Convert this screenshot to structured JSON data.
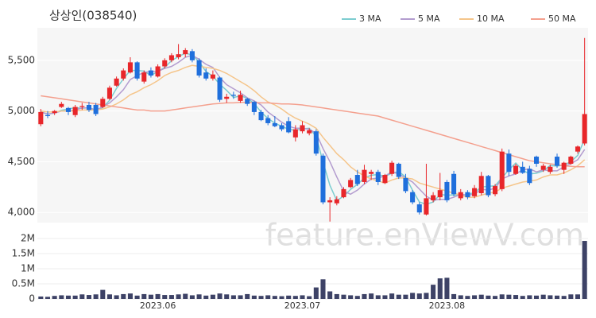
{
  "chart_data": [
    {
      "type": "candlestick",
      "title": "상상인(038540)",
      "open": [
        4870,
        4960,
        4980,
        5040,
        5030,
        4960,
        5040,
        5060,
        5060,
        5040,
        5120,
        5250,
        5320,
        5380,
        5480,
        5290,
        5400,
        5340,
        5440,
        5500,
        5530,
        5560,
        5590,
        5500,
        5380,
        5320,
        5330,
        5120,
        5160,
        5100,
        5120,
        5090,
        4990,
        4930,
        4880,
        4860,
        4900,
        4740,
        4800,
        4780,
        4800,
        4560,
        4100,
        4090,
        4150,
        4250,
        4370,
        4300,
        4380,
        4400,
        4290,
        4380,
        4480,
        4340,
        4200,
        4080,
        3980,
        4120,
        4150,
        4300,
        4380,
        4140,
        4200,
        4160,
        4190,
        4360,
        4180,
        4230,
        4580,
        4380,
        4450,
        4430,
        4550,
        4420,
        4400,
        4550,
        4420,
        4480,
        4600,
        4680
      ],
      "high": [
        5020,
        5000,
        5010,
        5090,
        5040,
        5060,
        5080,
        5090,
        5080,
        5140,
        5250,
        5340,
        5420,
        5530,
        5490,
        5400,
        5430,
        5460,
        5520,
        5570,
        5660,
        5620,
        5610,
        5520,
        5420,
        5400,
        5340,
        5170,
        5190,
        5200,
        5130,
        5100,
        5010,
        4960,
        4950,
        4880,
        4940,
        4860,
        4900,
        4830,
        4820,
        4580,
        4150,
        4160,
        4250,
        4340,
        4420,
        4470,
        4420,
        4420,
        4380,
        4510,
        4490,
        4380,
        4220,
        4100,
        4480,
        4200,
        4390,
        4320,
        4410,
        4230,
        4220,
        4270,
        4400,
        4370,
        4280,
        4630,
        4620,
        4480,
        4500,
        4460,
        4560,
        4480,
        4470,
        4580,
        4500,
        4560,
        4660,
        5720
      ],
      "low": [
        4850,
        4930,
        4960,
        5030,
        4960,
        4940,
        5010,
        4990,
        4950,
        5030,
        5110,
        5240,
        5300,
        5370,
        5300,
        5270,
        5330,
        5330,
        5420,
        5480,
        5510,
        5530,
        5480,
        5330,
        5300,
        5300,
        5090,
        5080,
        5120,
        5080,
        5050,
        4960,
        4900,
        4860,
        4840,
        4800,
        4780,
        4700,
        4780,
        4760,
        4560,
        4080,
        3910,
        4070,
        4140,
        4240,
        4260,
        4280,
        4320,
        4270,
        4280,
        4360,
        4330,
        4190,
        4080,
        3980,
        3970,
        4100,
        4120,
        4100,
        4160,
        4120,
        4130,
        4140,
        4170,
        4150,
        4160,
        4210,
        4360,
        4370,
        4380,
        4270,
        4450,
        4400,
        4380,
        4440,
        4380,
        4470,
        4580,
        4660
      ],
      "close": [
        4990,
        4950,
        5000,
        5070,
        4990,
        5040,
        5050,
        5010,
        4970,
        5120,
        5230,
        5320,
        5400,
        5480,
        5320,
        5380,
        5350,
        5440,
        5500,
        5550,
        5560,
        5600,
        5500,
        5350,
        5320,
        5360,
        5110,
        5140,
        5150,
        5160,
        5070,
        4990,
        4910,
        4880,
        4850,
        4820,
        4790,
        4820,
        4860,
        4810,
        4580,
        4100,
        4120,
        4130,
        4230,
        4320,
        4280,
        4420,
        4400,
        4300,
        4370,
        4490,
        4350,
        4210,
        4100,
        4000,
        4140,
        4170,
        4220,
        4120,
        4180,
        4200,
        4150,
        4240,
        4360,
        4170,
        4260,
        4600,
        4400,
        4460,
        4390,
        4290,
        4480,
        4460,
        4450,
        4460,
        4490,
        4550,
        4650,
        4970
      ],
      "up_color": "#e8262a",
      "down_color": "#1f6fdc",
      "series": [
        {
          "name": "3 MA",
          "color": "#7ccdd0",
          "values": [
            4990,
            4970,
            4980,
            5007,
            5020,
            5033,
            5027,
            5033,
            5010,
            5033,
            5107,
            5223,
            5317,
            5400,
            5400,
            5393,
            5350,
            5390,
            5430,
            5497,
            5537,
            5570,
            5553,
            5483,
            5390,
            5343,
            5263,
            5203,
            5133,
            5150,
            5127,
            5073,
            4990,
            4927,
            4880,
            4850,
            4820,
            4810,
            4823,
            4830,
            4750,
            4497,
            4267,
            4117,
            4160,
            4227,
            4277,
            4340,
            4367,
            4373,
            4357,
            4387,
            4403,
            4350,
            4220,
            4103,
            4080,
            4103,
            4177,
            4170,
            4173,
            4167,
            4177,
            4197,
            4250,
            4257,
            4263,
            4343,
            4420,
            4487,
            4417,
            4380,
            4387,
            4410,
            4463,
            4457,
            4467,
            4500,
            4563,
            4723
          ]
        },
        {
          "name": "5 MA",
          "color": "#b39ccf",
          "values": [
            4990,
            4970,
            4980,
            5000,
            5000,
            5010,
            5030,
            5030,
            5010,
            5040,
            5080,
            5140,
            5210,
            5310,
            5350,
            5380,
            5390,
            5390,
            5420,
            5440,
            5480,
            5530,
            5550,
            5510,
            5460,
            5430,
            5330,
            5260,
            5220,
            5180,
            5130,
            5100,
            5060,
            4990,
            4940,
            4890,
            4850,
            4830,
            4830,
            4820,
            4780,
            4630,
            4500,
            4350,
            4210,
            4180,
            4220,
            4280,
            4330,
            4340,
            4360,
            4400,
            4380,
            4340,
            4300,
            4230,
            4160,
            4120,
            4130,
            4130,
            4150,
            4180,
            4170,
            4180,
            4230,
            4220,
            4240,
            4330,
            4360,
            4380,
            4420,
            4430,
            4400,
            4420,
            4410,
            4410,
            4450,
            4480,
            4520,
            4620
          ]
        },
        {
          "name": "10 MA",
          "color": "#f5c58a",
          "values": [
            5000,
            4990,
            4990,
            5000,
            5000,
            5000,
            5010,
            5010,
            5010,
            5020,
            5040,
            5070,
            5110,
            5160,
            5190,
            5230,
            5260,
            5300,
            5350,
            5380,
            5400,
            5430,
            5450,
            5440,
            5430,
            5420,
            5400,
            5370,
            5330,
            5290,
            5250,
            5200,
            5140,
            5090,
            5060,
            5020,
            4970,
            4930,
            4900,
            4870,
            4830,
            4740,
            4660,
            4580,
            4520,
            4450,
            4400,
            4360,
            4330,
            4310,
            4290,
            4320,
            4340,
            4340,
            4330,
            4290,
            4270,
            4250,
            4230,
            4210,
            4190,
            4170,
            4150,
            4150,
            4170,
            4190,
            4200,
            4240,
            4260,
            4280,
            4300,
            4310,
            4320,
            4350,
            4370,
            4370,
            4390,
            4420,
            4460,
            4520
          ]
        },
        {
          "name": "50 MA",
          "color": "#f4a08e",
          "values": [
            5150,
            5140,
            5130,
            5120,
            5110,
            5100,
            5090,
            5080,
            5070,
            5060,
            5050,
            5040,
            5030,
            5020,
            5010,
            5010,
            5000,
            5000,
            5000,
            5010,
            5020,
            5030,
            5040,
            5050,
            5060,
            5070,
            5075,
            5080,
            5080,
            5085,
            5085,
            5085,
            5080,
            5080,
            5075,
            5070,
            5070,
            5065,
            5060,
            5050,
            5040,
            5030,
            5020,
            5010,
            5000,
            4990,
            4980,
            4970,
            4960,
            4950,
            4930,
            4910,
            4890,
            4870,
            4850,
            4830,
            4810,
            4790,
            4770,
            4750,
            4730,
            4710,
            4690,
            4670,
            4650,
            4630,
            4610,
            4590,
            4570,
            4550,
            4530,
            4510,
            4500,
            4490,
            4480,
            4470,
            4460,
            4455,
            4450,
            4450
          ]
        }
      ],
      "ylim": [
        3900,
        5820
      ],
      "yticks": [
        {
          "value": 4000,
          "label": "4,000"
        },
        {
          "value": 4500,
          "label": "4,500"
        },
        {
          "value": 5000,
          "label": "5,000"
        },
        {
          "value": 5500,
          "label": "5,500"
        }
      ],
      "grid": true,
      "legend": "top-right",
      "watermark": "feature.enViewV.com"
    },
    {
      "type": "bar",
      "categories": [
        null,
        null,
        null,
        null,
        null,
        null,
        null,
        null,
        null,
        null,
        null,
        null,
        null,
        null,
        null,
        null,
        null,
        "2023.06",
        null,
        null,
        null,
        null,
        null,
        null,
        null,
        null,
        null,
        null,
        null,
        null,
        null,
        null,
        null,
        null,
        null,
        null,
        null,
        null,
        "2023.07",
        null,
        null,
        null,
        null,
        null,
        null,
        null,
        null,
        null,
        null,
        null,
        null,
        null,
        null,
        null,
        null,
        null,
        null,
        null,
        null,
        "2023.08",
        null,
        null,
        null,
        null,
        null,
        null,
        null,
        null,
        null,
        null,
        null,
        null,
        null,
        null,
        null,
        null,
        null,
        null,
        null,
        null
      ],
      "values": [
        80000,
        70000,
        100000,
        120000,
        110000,
        110000,
        150000,
        130000,
        150000,
        300000,
        150000,
        120000,
        160000,
        180000,
        110000,
        160000,
        140000,
        160000,
        130000,
        130000,
        150000,
        170000,
        120000,
        150000,
        110000,
        140000,
        180000,
        150000,
        120000,
        120000,
        160000,
        110000,
        100000,
        120000,
        100000,
        90000,
        110000,
        100000,
        120000,
        90000,
        380000,
        650000,
        250000,
        160000,
        140000,
        120000,
        100000,
        160000,
        180000,
        120000,
        120000,
        180000,
        140000,
        140000,
        200000,
        180000,
        200000,
        470000,
        680000,
        700000,
        160000,
        120000,
        100000,
        120000,
        140000,
        110000,
        100000,
        150000,
        140000,
        130000,
        100000,
        120000,
        110000,
        140000,
        120000,
        110000,
        100000,
        150000,
        150000,
        1920000
      ],
      "color": "#3d4266",
      "ylim": [
        0,
        2000000
      ],
      "yticks": [
        0,
        {
          "value": 500000,
          "label": "0.5M"
        },
        {
          "value": 1000000,
          "label": "1M"
        },
        {
          "value": 1500000,
          "label": "1.5M"
        },
        {
          "value": 2000000,
          "label": "2M"
        }
      ],
      "grid": true
    }
  ]
}
